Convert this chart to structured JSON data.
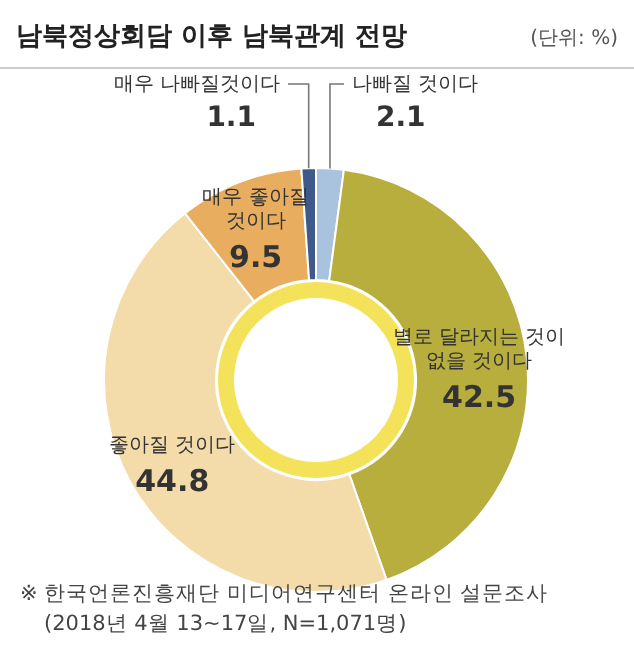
{
  "chart_data": {
    "type": "donut",
    "title": "남북정상회담 이후 남북관계 전망",
    "subtitle": "(단위: %)",
    "categories": [
      "나빠질 것이다",
      "별로 달라지는 것이\n없을 것이다",
      "좋아질 것이다",
      "매우 좋아질\n것이다",
      "매우 나빠질것이다"
    ],
    "values": [
      2.1,
      42.5,
      44.8,
      9.5,
      1.1
    ],
    "colors": [
      "#a9c3df",
      "#b8ae3e",
      "#f3dcaa",
      "#e9ad5f",
      "#3d5a8a"
    ],
    "data_labels": true,
    "annotations": [
      "※ 한국언론진흥재단 미디어연구센터 온라인 설문조사",
      "(2018년 4월 13~17일, N=1,071명)"
    ]
  }
}
